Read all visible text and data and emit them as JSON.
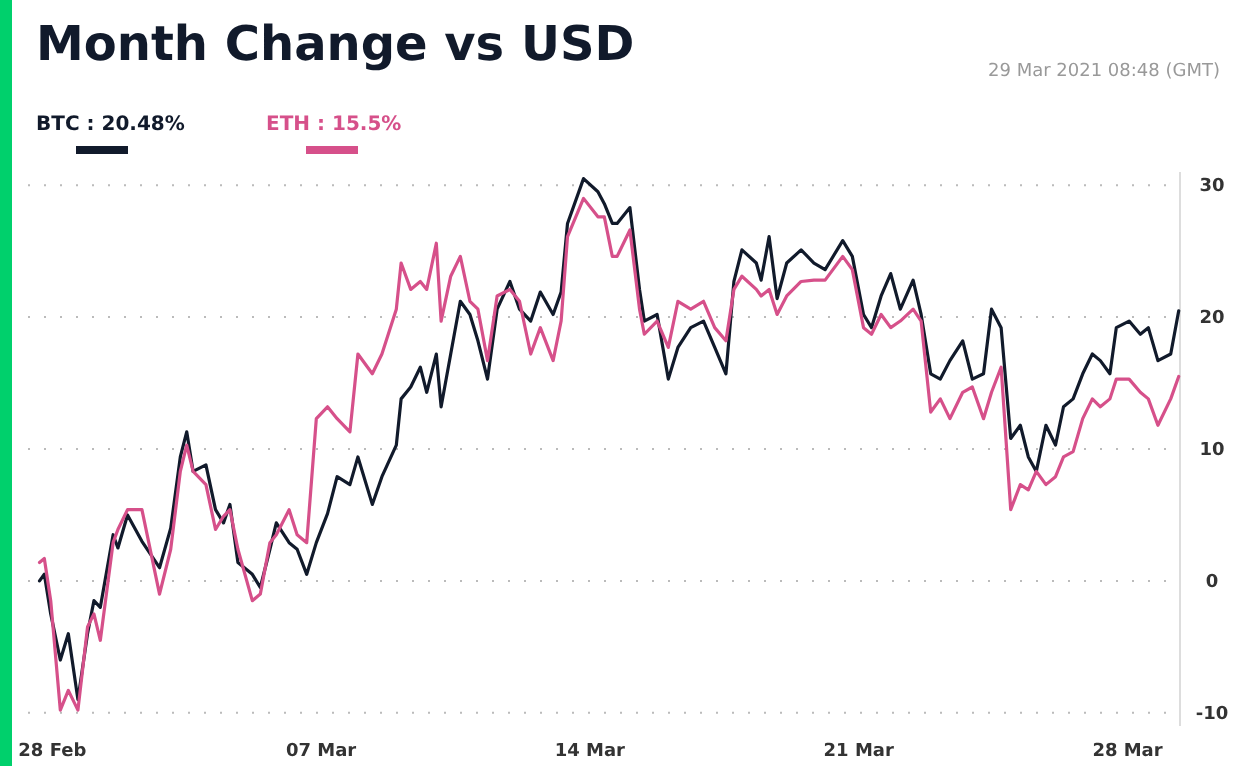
{
  "chart_data": {
    "type": "line",
    "title": "Month Change vs USD",
    "subtitle": "29 Mar 2021 08:48 (GMT)",
    "xlim": [
      "2021-02-27T08:48",
      "2021-03-29T08:48"
    ],
    "xticks": [
      {
        "value": "2021-02-28",
        "label": "28 Feb"
      },
      {
        "value": "2021-03-07",
        "label": "07 Mar"
      },
      {
        "value": "2021-03-14",
        "label": "14 Mar"
      },
      {
        "value": "2021-03-21",
        "label": "21 Mar"
      },
      {
        "value": "2021-03-28",
        "label": "28 Mar"
      }
    ],
    "ylim": [
      -11,
      31
    ],
    "yticks": [
      -10,
      0,
      10,
      20,
      30
    ],
    "grid": "y",
    "legend": "top left",
    "line_style": "solid",
    "marker": "none",
    "x": [
      "2021-02-27T16:00",
      "2021-02-27T19:00",
      "2021-02-27T23:00",
      "2021-02-28T05:00",
      "2021-02-28T10:00",
      "2021-02-28T16:00",
      "2021-02-28T22:00",
      "2021-03-01T02:00",
      "2021-03-01T06:00",
      "2021-03-01T14:00",
      "2021-03-01T17:00",
      "2021-03-01T23:00",
      "2021-03-02T08:00",
      "2021-03-02T19:00",
      "2021-03-03T02:00",
      "2021-03-03T08:00",
      "2021-03-03T12:00",
      "2021-03-03T16:00",
      "2021-03-04T00:00",
      "2021-03-04T06:00",
      "2021-03-04T11:00",
      "2021-03-04T15:00",
      "2021-03-04T20:00",
      "2021-03-05T05:00",
      "2021-03-05T10:00",
      "2021-03-05T16:00",
      "2021-03-05T20:00",
      "2021-03-06T04:00",
      "2021-03-06T09:00",
      "2021-03-06T15:00",
      "2021-03-06T21:00",
      "2021-03-07T04:00",
      "2021-03-07T10:00",
      "2021-03-07T18:00",
      "2021-03-07T23:00",
      "2021-03-08T08:00",
      "2021-03-08T14:00",
      "2021-03-08T23:00",
      "2021-03-09T02:00",
      "2021-03-09T08:00",
      "2021-03-09T14:00",
      "2021-03-09T18:00",
      "2021-03-10T00:00",
      "2021-03-10T03:00",
      "2021-03-10T09:00",
      "2021-03-10T15:00",
      "2021-03-10T21:00",
      "2021-03-11T02:00",
      "2021-03-11T08:00",
      "2021-03-11T14:00",
      "2021-03-11T22:00",
      "2021-03-12T04:00",
      "2021-03-12T11:00",
      "2021-03-12T17:00",
      "2021-03-13T01:00",
      "2021-03-13T06:00",
      "2021-03-13T10:00",
      "2021-03-13T20:00",
      "2021-03-14T05:00",
      "2021-03-14T09:00",
      "2021-03-14T14:00",
      "2021-03-14T17:00",
      "2021-03-15T01:00",
      "2021-03-15T07:00",
      "2021-03-15T10:00",
      "2021-03-15T18:00",
      "2021-03-16T01:00",
      "2021-03-16T07:00",
      "2021-03-16T15:00",
      "2021-03-16T23:00",
      "2021-03-17T06:00",
      "2021-03-17T13:00",
      "2021-03-17T18:00",
      "2021-03-17T23:00",
      "2021-03-18T08:00",
      "2021-03-18T11:00",
      "2021-03-18T16:00",
      "2021-03-18T21:00",
      "2021-03-19T03:00",
      "2021-03-19T12:00",
      "2021-03-19T20:00",
      "2021-03-20T03:00",
      "2021-03-20T14:00",
      "2021-03-20T20:00",
      "2021-03-21T03:00",
      "2021-03-21T08:00",
      "2021-03-21T14:00",
      "2021-03-21T20:00",
      "2021-03-22T02:00",
      "2021-03-22T10:00",
      "2021-03-22T15:00",
      "2021-03-22T21:00",
      "2021-03-23T03:00",
      "2021-03-23T09:00",
      "2021-03-23T17:00",
      "2021-03-23T23:00",
      "2021-03-24T06:00",
      "2021-03-24T11:00",
      "2021-03-24T17:00",
      "2021-03-24T23:00",
      "2021-03-25T05:00",
      "2021-03-25T10:00",
      "2021-03-25T15:00",
      "2021-03-25T21:00",
      "2021-03-26T03:00",
      "2021-03-26T08:00",
      "2021-03-26T14:00",
      "2021-03-26T20:00",
      "2021-03-27T02:00",
      "2021-03-27T07:00",
      "2021-03-27T13:00",
      "2021-03-27T17:00",
      "2021-03-28T01:00",
      "2021-03-28T08:00",
      "2021-03-28T13:00",
      "2021-03-28T19:00",
      "2021-03-29T03:00",
      "2021-03-29T08:00"
    ],
    "series": [
      {
        "name": "BTC : 20.48%",
        "color": "#111a2b",
        "values": [
          0,
          0.5,
          -2.5,
          -6,
          -4,
          -9,
          -4,
          -1.5,
          -2,
          3.5,
          2.5,
          5,
          3,
          1,
          4,
          9.4,
          11.3,
          8.3,
          8.8,
          5.4,
          4.4,
          5.8,
          1.4,
          0.5,
          -0.5,
          2.4,
          4.4,
          2.9,
          2.4,
          0.5,
          2.9,
          5.1,
          7.9,
          7.3,
          9.4,
          5.8,
          7.9,
          10.3,
          13.8,
          14.7,
          16.2,
          14.3,
          17.2,
          13.2,
          17.2,
          21.2,
          20.2,
          18.2,
          15.3,
          20.6,
          22.7,
          20.6,
          19.7,
          21.9,
          20.2,
          21.9,
          27.1,
          30.5,
          29.5,
          28.6,
          27.1,
          27.1,
          28.3,
          22.1,
          19.7,
          20.2,
          15.3,
          17.7,
          19.2,
          19.7,
          17.7,
          15.7,
          22.7,
          25.1,
          24.1,
          22.8,
          26.1,
          21.4,
          24.1,
          25.1,
          24.1,
          23.6,
          25.8,
          24.6,
          20.2,
          19.2,
          21.6,
          23.3,
          20.6,
          22.8,
          20.2,
          15.7,
          15.3,
          16.7,
          18.2,
          15.3,
          15.7,
          20.6,
          19.2,
          10.8,
          11.8,
          9.4,
          8.3,
          11.8,
          10.3,
          13.2,
          13.8,
          15.7,
          17.2,
          16.7,
          15.7,
          19.2,
          19.7,
          18.7,
          19.2,
          16.7,
          17.2,
          20.48
        ]
      },
      {
        "name": "ETH : 15.5%",
        "color": "#d6508a",
        "values": [
          1.4,
          1.7,
          -1.5,
          -9.8,
          -8.3,
          -9.8,
          -3.5,
          -2.5,
          -4.5,
          2.9,
          3.9,
          5.4,
          5.4,
          -1,
          2.4,
          8.3,
          10.3,
          8.3,
          7.3,
          3.9,
          4.9,
          5.4,
          2.4,
          -1.5,
          -1,
          2.9,
          3.5,
          5.4,
          3.5,
          2.9,
          12.3,
          13.2,
          12.3,
          11.3,
          17.2,
          15.7,
          17.2,
          20.6,
          24.1,
          22.1,
          22.7,
          22.1,
          25.6,
          19.7,
          23.1,
          24.6,
          21.2,
          20.6,
          16.7,
          21.6,
          22.1,
          21.2,
          17.2,
          19.2,
          16.7,
          19.7,
          26.1,
          29,
          27.6,
          27.6,
          24.6,
          24.6,
          26.6,
          20.6,
          18.7,
          19.7,
          17.7,
          21.2,
          20.6,
          21.2,
          19.2,
          18.2,
          22.1,
          23.1,
          22.1,
          21.6,
          22.1,
          20.2,
          21.6,
          22.7,
          22.8,
          22.8,
          24.6,
          23.6,
          19.2,
          18.7,
          20.2,
          19.2,
          19.7,
          20.6,
          19.7,
          12.8,
          13.8,
          12.3,
          14.3,
          14.7,
          12.3,
          14.3,
          16.2,
          5.4,
          7.3,
          6.9,
          8.3,
          7.3,
          7.9,
          9.4,
          9.8,
          12.3,
          13.8,
          13.2,
          13.8,
          15.3,
          15.3,
          14.3,
          13.8,
          11.8,
          13.8,
          15.5
        ]
      }
    ]
  }
}
